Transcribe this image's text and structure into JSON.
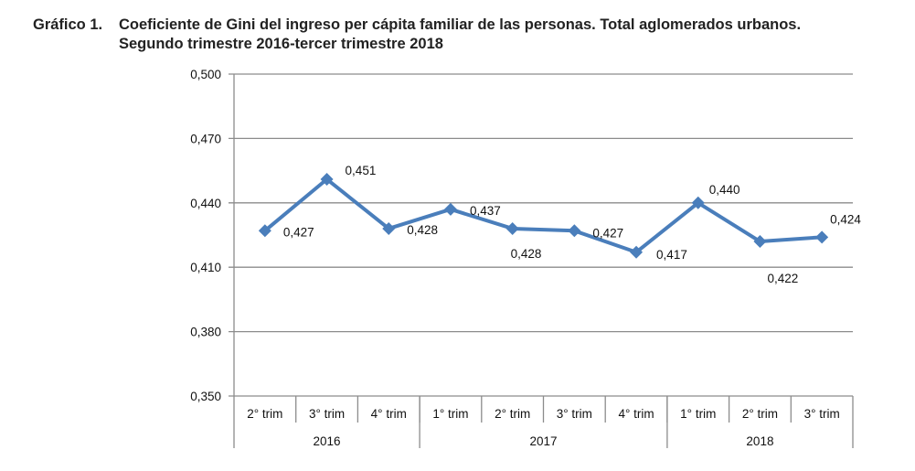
{
  "figure_label": "Gráfico 1.",
  "chart_data": {
    "type": "line",
    "title_line1": "Coeficiente de Gini del ingreso per cápita familiar de las personas. Total aglomerados urbanos.",
    "title_line2": "Segundo trimestre 2016-tercer trimestre 2018",
    "categories": [
      "2° trim",
      "3° trim",
      "4° trim",
      "1° trim",
      "2° trim",
      "3° trim",
      "4° trim",
      "1° trim",
      "2° trim",
      "3° trim"
    ],
    "groups": [
      {
        "label": "2016",
        "span": 3
      },
      {
        "label": "2017",
        "span": 4
      },
      {
        "label": "2018",
        "span": 3
      }
    ],
    "values": [
      0.427,
      0.451,
      0.428,
      0.437,
      0.428,
      0.427,
      0.417,
      0.44,
      0.422,
      0.424
    ],
    "data_labels": [
      "0,427",
      "0,451",
      "0,428",
      "0,437",
      "0,428",
      "0,427",
      "0,417",
      "0,440",
      "0,422",
      "0,424"
    ],
    "ylim": [
      0.35,
      0.5
    ],
    "yticks": [
      0.35,
      0.38,
      0.41,
      0.44,
      0.47,
      0.5
    ],
    "ytick_labels": [
      "0,350",
      "0,380",
      "0,410",
      "0,440",
      "0,470",
      "0,500"
    ],
    "grid": true,
    "line_color": "#4a7ebb",
    "marker": "diamond"
  }
}
